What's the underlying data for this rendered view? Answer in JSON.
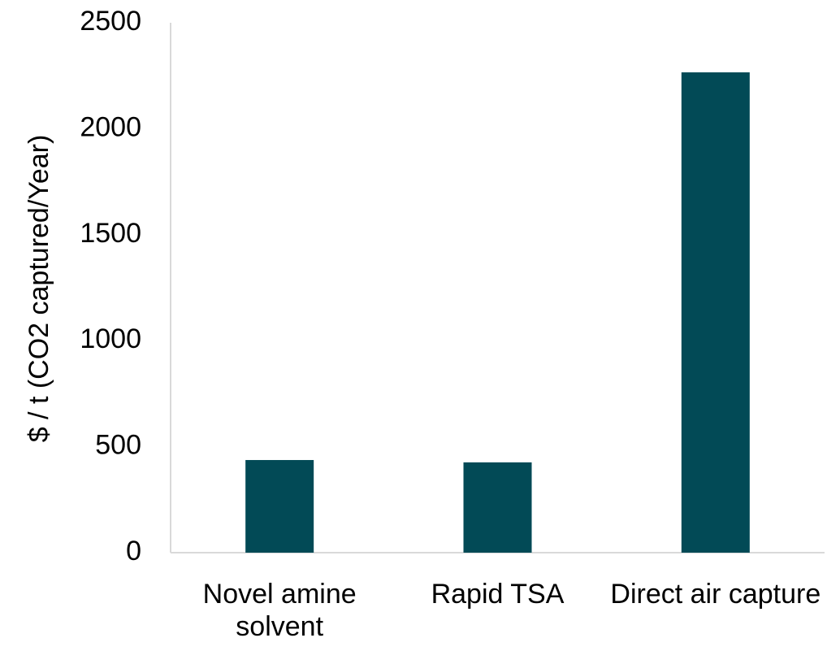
{
  "chart_data": {
    "type": "bar",
    "y_label": "$ / t (CO2 captured/Year)",
    "categories": [
      "Novel amine solvent",
      "Rapid TSA",
      "Direct air capture"
    ],
    "values": [
      437,
      426,
      2266
    ],
    "color": "#024a56",
    "ylim": [
      0,
      2500
    ],
    "yticks": [
      0,
      500,
      1000,
      1500,
      2000,
      2500
    ],
    "grid": false
  }
}
